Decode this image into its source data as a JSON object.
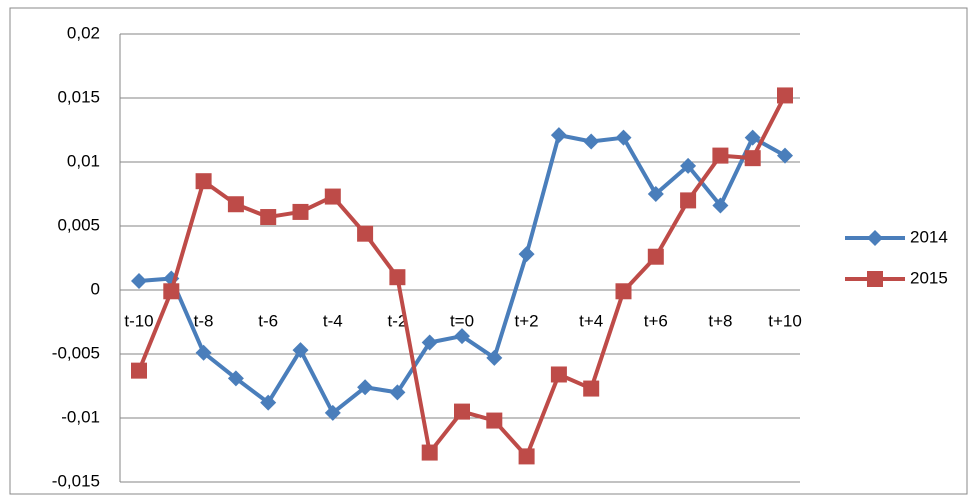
{
  "chart_data": {
    "type": "line",
    "categories": [
      "t-10",
      null,
      "t-8",
      null,
      "t-6",
      null,
      "t-4",
      null,
      "t-2",
      null,
      "t=0",
      null,
      "t+2",
      null,
      "t+4",
      null,
      "t+6",
      null,
      "t+8",
      null,
      "t+10"
    ],
    "series": [
      {
        "name": "2014",
        "color": "#4a7ebb",
        "marker": "diamond",
        "values": [
          0.0007,
          0.0009,
          -0.0049,
          -0.0069,
          -0.0088,
          -0.0047,
          -0.0096,
          -0.0076,
          -0.008,
          -0.0041,
          -0.0036,
          -0.0053,
          0.0028,
          0.0121,
          0.0116,
          0.0119,
          0.0075,
          0.0097,
          0.0066,
          0.0119,
          0.0105
        ]
      },
      {
        "name": "2015",
        "color": "#be4b48",
        "marker": "square",
        "values": [
          -0.0063,
          -0.0001,
          0.0085,
          0.0067,
          0.0057,
          0.0061,
          0.0073,
          0.0044,
          0.001,
          -0.0127,
          -0.0095,
          -0.0102,
          -0.013,
          -0.0066,
          -0.0077,
          -0.0001,
          0.0026,
          0.007,
          0.0105,
          0.0103,
          0.0152
        ]
      }
    ],
    "ylim": [
      -0.015,
      0.02
    ],
    "yticks": [
      {
        "value": -0.015,
        "label": "-0,015"
      },
      {
        "value": -0.01,
        "label": "-0,01"
      },
      {
        "value": -0.005,
        "label": "-0,005"
      },
      0,
      {
        "value": 0.005,
        "label": "0,005"
      },
      {
        "value": 0.01,
        "label": "0,01"
      },
      {
        "value": 0.015,
        "label": "0,015"
      },
      {
        "value": 0.02,
        "label": "0,02"
      }
    ],
    "grid": true,
    "legend": "right"
  }
}
